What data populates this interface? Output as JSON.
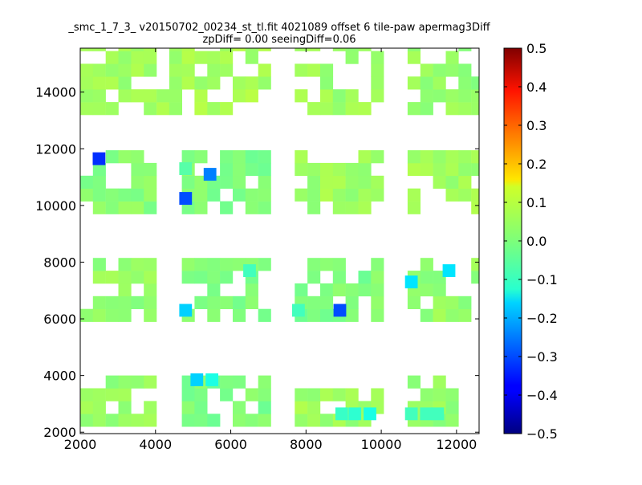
{
  "chart_data": {
    "type": "heatmap",
    "title_lines": [
      "_smc_1_7_3_ v20150702_00234_st_tl.fit 4021089 offset 6 tile-paw apermag3Diff",
      "zpDiff= 0.00 seeingDiff=0.06"
    ],
    "xlim": [
      2000,
      12600
    ],
    "ylim": [
      1950,
      15550
    ],
    "x_ticks": [
      2000,
      4000,
      6000,
      8000,
      10000,
      12000
    ],
    "y_ticks": [
      2000,
      4000,
      6000,
      8000,
      10000,
      12000,
      14000
    ],
    "x_tick_labels": [
      "2000",
      "4000",
      "6000",
      "8000",
      "10000",
      "12000"
    ],
    "y_tick_labels": [
      "2000",
      "4000",
      "6000",
      "8000",
      "10000",
      "12000",
      "14000"
    ],
    "bin_width": 338,
    "bin_height": 450,
    "colorscale": "jet",
    "color_range": [
      -0.5,
      0.5
    ],
    "colorbar_ticks": [
      0.5,
      0.4,
      0.3,
      0.2,
      0.1,
      0.0,
      -0.1,
      -0.2,
      -0.3,
      -0.4,
      -0.5
    ],
    "colorbar_tick_labels": [
      "0.5",
      "0.4",
      "0.3",
      "0.2",
      "0.1",
      "0.0",
      "−0.1",
      "−0.2",
      "−0.3",
      "−0.4",
      "−0.5"
    ],
    "default_value": 0.02,
    "regions": [
      {
        "x": [
          2000,
          4000
        ],
        "y": [
          2200,
          4000
        ],
        "value": 0.02
      },
      {
        "x": [
          4700,
          7000
        ],
        "y": [
          2200,
          4000
        ],
        "value": 0.0
      },
      {
        "x": [
          7700,
          9800
        ],
        "y": [
          2200,
          3300
        ],
        "value": 0.03
      },
      {
        "x": [
          10700,
          11900
        ],
        "y": [
          2200,
          4000
        ],
        "value": 0.02
      },
      {
        "x": [
          2000,
          4000
        ],
        "y": [
          5900,
          7900
        ],
        "value": 0.02
      },
      {
        "x": [
          4700,
          7000
        ],
        "y": [
          5900,
          7900
        ],
        "value": 0.0
      },
      {
        "x": [
          7700,
          9800
        ],
        "y": [
          5900,
          7900
        ],
        "value": 0.0
      },
      {
        "x": [
          10700,
          12600
        ],
        "y": [
          5900,
          7900
        ],
        "value": 0.02
      },
      {
        "x": [
          2000,
          4000
        ],
        "y": [
          9700,
          11700
        ],
        "value": 0.01
      },
      {
        "x": [
          4700,
          7000
        ],
        "y": [
          9700,
          11700
        ],
        "value": 0.0
      },
      {
        "x": [
          7700,
          9800
        ],
        "y": [
          9700,
          11700
        ],
        "value": 0.03
      },
      {
        "x": [
          10700,
          12600
        ],
        "y": [
          9700,
          11700
        ],
        "value": 0.03
      },
      {
        "x": [
          2000,
          4400
        ],
        "y": [
          13200,
          15550
        ],
        "value": 0.03
      },
      {
        "x": [
          4700,
          7000
        ],
        "y": [
          13200,
          15550
        ],
        "value": 0.04
      },
      {
        "x": [
          7700,
          9800
        ],
        "y": [
          13200,
          15550
        ],
        "value": 0.03
      },
      {
        "x": [
          10700,
          12600
        ],
        "y": [
          13200,
          15550
        ],
        "value": 0.02
      }
    ],
    "outliers": [
      {
        "x": 2500,
        "y": 11650,
        "value": -0.33
      },
      {
        "x": 5450,
        "y": 11100,
        "value": -0.25
      },
      {
        "x": 4800,
        "y": 10250,
        "value": -0.3
      },
      {
        "x": 8900,
        "y": 6300,
        "value": -0.3
      },
      {
        "x": 4800,
        "y": 6300,
        "value": -0.17
      },
      {
        "x": 5100,
        "y": 3850,
        "value": -0.17
      },
      {
        "x": 5500,
        "y": 3850,
        "value": -0.1
      },
      {
        "x": 11800,
        "y": 7700,
        "value": -0.15
      },
      {
        "x": 10800,
        "y": 7300,
        "value": -0.15
      },
      {
        "x": 9700,
        "y": 2650,
        "value": -0.1
      },
      {
        "x": 9300,
        "y": 2650,
        "value": -0.08
      },
      {
        "x": 8950,
        "y": 2650,
        "value": -0.07
      },
      {
        "x": 10800,
        "y": 2650,
        "value": -0.06
      },
      {
        "x": 11200,
        "y": 2650,
        "value": -0.06
      },
      {
        "x": 11500,
        "y": 2650,
        "value": -0.06
      },
      {
        "x": 6500,
        "y": 7700,
        "value": -0.06
      },
      {
        "x": 7800,
        "y": 6300,
        "value": -0.06
      },
      {
        "x": 4800,
        "y": 11300,
        "value": -0.04
      }
    ]
  }
}
